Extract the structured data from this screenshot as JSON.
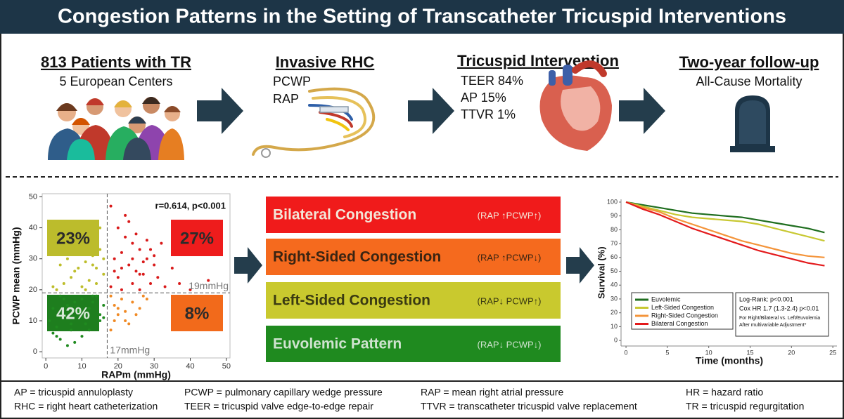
{
  "title": "Congestion Patterns in the Setting of Transcatheter Tricuspid Interventions",
  "steps": [
    {
      "title": "813 Patients with TR",
      "lines": [
        "5 European  Centers"
      ]
    },
    {
      "title": "Invasive RHC",
      "lines": [
        "PCWP",
        "RAP"
      ]
    },
    {
      "title": "Tricuspid Intervention",
      "lines": [
        "TEER 84%",
        "AP 15%",
        "TTVR 1%"
      ]
    },
    {
      "title": "Two-year follow-up",
      "lines": [
        "All-Cause Mortality"
      ]
    }
  ],
  "patterns": [
    {
      "name": "Bilateral Congestion",
      "detail": "(RAP ↑PCWP↑)",
      "color": "#f01b1b",
      "text_color": "#f3e6d8"
    },
    {
      "name": "Right-Sided Congestion",
      "detail": "(RAP ↑PCWP↓)",
      "color": "#f56a1e",
      "text_color": "#3a2412"
    },
    {
      "name": "Left-Sided Congestion",
      "detail": "(RAP↓ PCWP↑)",
      "color": "#c9c92e",
      "text_color": "#3a3a12"
    },
    {
      "name": "Euvolemic Pattern",
      "detail": "(RAP↓ PCWP↓)",
      "color": "#1f8a1f",
      "text_color": "#cfe3cf"
    }
  ],
  "chart_data": [
    {
      "type": "scatter",
      "xlabel": "RAPm (mmHg)",
      "ylabel": "PCWP mean (mmHg)",
      "annotation": "r=0.614, p<0.001",
      "xlim": [
        -1,
        51
      ],
      "ylim": [
        -2,
        51
      ],
      "xticks": [
        0,
        10,
        20,
        30,
        40,
        50
      ],
      "yticks": [
        0,
        10,
        20,
        30,
        40,
        50
      ],
      "xline": {
        "value": 17,
        "label": "17mmHg"
      },
      "yline": {
        "value": 19,
        "label": "19mmHg"
      },
      "quadrant_labels": [
        {
          "text": "23%",
          "color": "#bcbc2c"
        },
        {
          "text": "27%",
          "color": "#ee1c1c"
        },
        {
          "text": "42%",
          "color": "#1e7e1e"
        },
        {
          "text": "8%",
          "color": "#f26a1b"
        }
      ],
      "series": [
        {
          "color": "#d91a1a",
          "x": [
            18,
            20,
            22,
            24,
            26,
            28,
            30,
            19,
            21,
            23,
            25,
            27,
            29,
            31,
            33,
            35,
            22,
            24,
            26,
            20,
            18,
            28,
            30,
            25,
            23,
            21,
            37,
            40,
            45,
            21,
            27,
            32,
            19,
            24,
            29,
            26
          ],
          "values": [
            47,
            40,
            37,
            35,
            33,
            30,
            28,
            30,
            32,
            28,
            26,
            25,
            22,
            24,
            21,
            27,
            44,
            22,
            20,
            24,
            21,
            36,
            31,
            38,
            42,
            27,
            22,
            20,
            23,
            20,
            29,
            35,
            26,
            30,
            33,
            25
          ]
        },
        {
          "color": "#f08a25",
          "x": [
            18,
            19,
            20,
            22,
            24,
            26,
            21,
            23,
            18,
            25,
            28,
            20,
            27,
            19,
            22
          ],
          "values": [
            18,
            15,
            12,
            10,
            16,
            14,
            17,
            9,
            7,
            12,
            17,
            14,
            18,
            10,
            13
          ]
        },
        {
          "color": "#bdbd2a",
          "x": [
            3,
            5,
            7,
            9,
            11,
            13,
            15,
            16,
            6,
            8,
            10,
            12,
            14,
            4,
            10,
            12,
            14,
            16,
            8,
            2,
            15,
            11,
            13
          ],
          "values": [
            20,
            22,
            24,
            27,
            29,
            31,
            33,
            25,
            30,
            26,
            34,
            36,
            22,
            28,
            21,
            23,
            27,
            30,
            38,
            21,
            40,
            20,
            28
          ]
        },
        {
          "color": "#1f8a1f",
          "x": [
            1,
            2,
            3,
            4,
            5,
            6,
            7,
            8,
            9,
            10,
            11,
            12,
            13,
            14,
            15,
            16,
            3,
            5,
            7,
            9,
            11,
            13,
            15,
            6,
            8,
            4,
            10,
            2,
            12,
            16
          ],
          "values": [
            10,
            6,
            8,
            4,
            12,
            15,
            9,
            3,
            13,
            17,
            11,
            14,
            16,
            18,
            12,
            15,
            5,
            17,
            7,
            14,
            9,
            18,
            10,
            2,
            16,
            18,
            5,
            14,
            7,
            11
          ]
        }
      ]
    },
    {
      "type": "line",
      "xlabel": "Time (months)",
      "ylabel": "Survival (%)",
      "x": [
        0,
        2,
        4,
        6,
        8,
        10,
        12,
        14,
        16,
        18,
        20,
        22,
        24
      ],
      "xlim": [
        -0.6,
        25.5
      ],
      "ylim": [
        -4,
        102
      ],
      "xticks": [
        0,
        5,
        10,
        15,
        20,
        25
      ],
      "yticks": [
        0,
        10,
        20,
        30,
        40,
        50,
        60,
        70,
        80,
        90,
        100
      ],
      "series": [
        {
          "name": "Euvolemic",
          "color": "#1f6e1f",
          "values": [
            100,
            98,
            96,
            94,
            92,
            91,
            90,
            89,
            87,
            85,
            83,
            81,
            78
          ]
        },
        {
          "name": "Left-Sided Congestion",
          "color": "#c8c832",
          "values": [
            100,
            97,
            94,
            91,
            89,
            88,
            87,
            86,
            84,
            81,
            78,
            75,
            72
          ]
        },
        {
          "name": "Right-Sided Congestion",
          "color": "#f4943a",
          "values": [
            100,
            96,
            93,
            88,
            84,
            80,
            76,
            72,
            69,
            66,
            63,
            61,
            60
          ]
        },
        {
          "name": "Bilateral Congestion",
          "color": "#e31a1c",
          "values": [
            100,
            95,
            91,
            86,
            81,
            77,
            73,
            69,
            65,
            62,
            59,
            56,
            54
          ]
        }
      ],
      "stats": [
        "Log-Rank: p<0.001",
        "Cox HR 1.7 (1.3-2.4) p<0.01",
        "For Right/Bilateral vs. Left/Euvolemia",
        "After multivariable Adjustment*"
      ]
    }
  ],
  "abbreviations": [
    "AP = tricuspid annuloplasty",
    "PCWP = pulmonary capillary wedge pressure",
    "RAP = mean right atrial pressure",
    "HR = hazard ratio",
    "RHC = right heart catheterization",
    "TEER = tricuspid valve edge-to-edge repair",
    "TTVR = transcatheter tricuspid valve replacement",
    "TR = tricuspid regurgitation"
  ]
}
